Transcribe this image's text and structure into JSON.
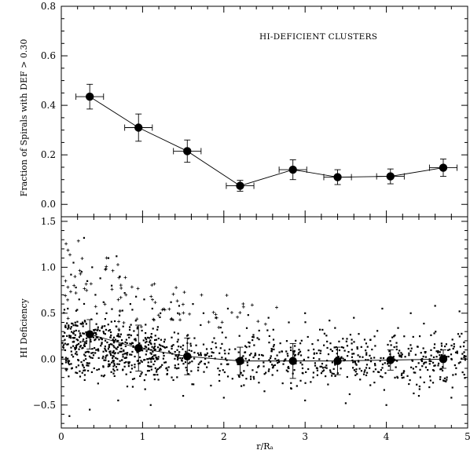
{
  "chart_data": [
    {
      "type": "line",
      "panel": "top",
      "title": "",
      "annotation": "HI-DEFICIENT CLUSTERS",
      "ylabel": "Fraction of Spirals with DEF > 0.30",
      "xlabel": "",
      "xlim": [
        0,
        5
      ],
      "ylim": [
        -0.05,
        0.8
      ],
      "yticks": [
        "0.0",
        "0.2",
        "0.4",
        "0.6",
        "0.8"
      ],
      "yticks_values": [
        0.0,
        0.2,
        0.4,
        0.6,
        0.8
      ],
      "points": [
        {
          "x": 0.35,
          "y": 0.435,
          "xerr": 0.17,
          "yerr": 0.05
        },
        {
          "x": 0.95,
          "y": 0.31,
          "xerr": 0.17,
          "yerr": 0.055
        },
        {
          "x": 1.55,
          "y": 0.215,
          "xerr": 0.17,
          "yerr": 0.045
        },
        {
          "x": 2.2,
          "y": 0.075,
          "xerr": 0.17,
          "yerr": 0.022
        },
        {
          "x": 2.85,
          "y": 0.14,
          "xerr": 0.17,
          "yerr": 0.04
        },
        {
          "x": 3.4,
          "y": 0.11,
          "xerr": 0.17,
          "yerr": 0.03
        },
        {
          "x": 4.05,
          "y": 0.113,
          "xerr": 0.17,
          "yerr": 0.03
        },
        {
          "x": 4.7,
          "y": 0.148,
          "xerr": 0.17,
          "yerr": 0.035
        }
      ]
    },
    {
      "type": "scatter",
      "panel": "bottom",
      "title": "",
      "ylabel": "HI Deficiency",
      "xlabel": "r/Rₐ",
      "xlim": [
        0,
        5
      ],
      "ylim": [
        -0.75,
        1.55
      ],
      "xticks": [
        "0",
        "1",
        "2",
        "3",
        "4",
        "5"
      ],
      "xticks_values": [
        0,
        1,
        2,
        3,
        4,
        5
      ],
      "yticks": [
        "−0.5",
        "0.0",
        "0.5",
        "1.0",
        "1.5"
      ],
      "yticks_values": [
        -0.5,
        0.0,
        0.5,
        1.0,
        1.5
      ],
      "binned_means": [
        {
          "x": 0.35,
          "y": 0.27,
          "yerr": 0.16
        },
        {
          "x": 0.95,
          "y": 0.12,
          "yerr": 0.25
        },
        {
          "x": 1.55,
          "y": 0.03,
          "yerr": 0.2
        },
        {
          "x": 2.2,
          "y": -0.02,
          "yerr": 0.15
        },
        {
          "x": 2.85,
          "y": -0.02,
          "yerr": 0.19
        },
        {
          "x": 3.4,
          "y": -0.02,
          "yerr": 0.15
        },
        {
          "x": 4.05,
          "y": -0.01,
          "yerr": 0.11
        },
        {
          "x": 4.7,
          "y": 0.0,
          "yerr": 0.1
        }
      ],
      "scatter_note": "dense cloud of individual galaxies (dots) with HI-deficient galaxies marked as small crosses, concentrated at r/R < 1",
      "scatter_points_sample": [
        [
          0.08,
          0.55
        ],
        [
          0.12,
          0.92
        ],
        [
          0.15,
          1.05
        ],
        [
          0.18,
          0.78
        ],
        [
          0.22,
          0.65
        ],
        [
          0.25,
          0.95
        ],
        [
          0.28,
          1.32
        ],
        [
          0.32,
          0.85
        ],
        [
          0.38,
          1.0
        ],
        [
          0.42,
          0.7
        ],
        [
          0.48,
          0.88
        ],
        [
          0.52,
          0.62
        ],
        [
          0.58,
          1.1
        ],
        [
          0.62,
          0.8
        ],
        [
          0.68,
          1.12
        ],
        [
          0.72,
          0.9
        ],
        [
          0.78,
          0.72
        ],
        [
          0.85,
          0.6
        ],
        [
          0.92,
          0.68
        ],
        [
          1.02,
          0.65
        ],
        [
          1.12,
          0.55
        ],
        [
          1.22,
          0.5
        ],
        [
          1.35,
          0.62
        ],
        [
          1.45,
          0.58
        ],
        [
          1.62,
          0.6
        ],
        [
          1.75,
          0.5
        ],
        [
          1.9,
          0.45
        ],
        [
          2.05,
          0.55
        ],
        [
          2.3,
          0.48
        ],
        [
          2.55,
          0.45
        ],
        [
          2.8,
          0.4
        ],
        [
          3.0,
          0.5
        ],
        [
          3.3,
          0.42
        ],
        [
          3.6,
          0.45
        ],
        [
          3.95,
          0.55
        ],
        [
          4.3,
          0.5
        ],
        [
          4.6,
          0.58
        ],
        [
          4.9,
          0.52
        ],
        [
          0.1,
          -0.62
        ],
        [
          0.35,
          -0.55
        ],
        [
          0.7,
          -0.45
        ],
        [
          1.1,
          -0.5
        ],
        [
          1.5,
          -0.4
        ],
        [
          2.0,
          -0.42
        ],
        [
          2.5,
          -0.35
        ],
        [
          3.0,
          -0.45
        ],
        [
          3.5,
          -0.48
        ],
        [
          4.0,
          -0.5
        ],
        [
          4.4,
          -0.4
        ],
        [
          4.8,
          -0.42
        ]
      ]
    }
  ]
}
